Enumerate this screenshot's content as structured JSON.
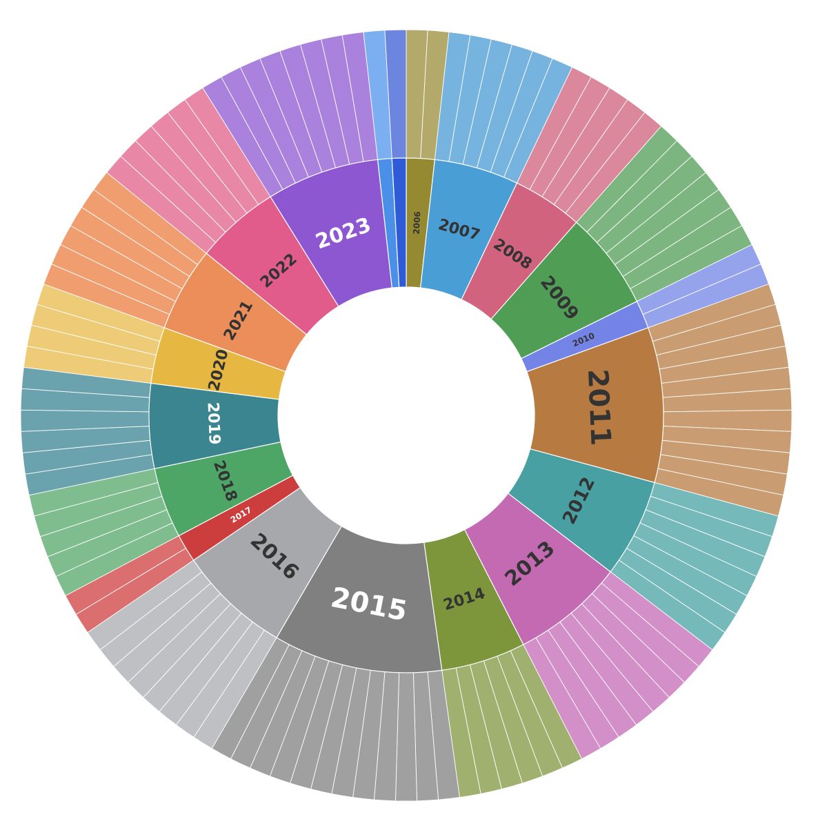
{
  "chart_data": {
    "type": "sunburst",
    "title": "",
    "start_angle_deg": 0,
    "years": [
      {
        "label": "2006",
        "items": 2,
        "inner_color": "#958a32",
        "outer_color": "#b2a96a",
        "text_color": "#333333"
      },
      {
        "label": "2007",
        "items": 6,
        "inner_color": "#4a9ed6",
        "outer_color": "#76b3de",
        "text_color": "#333333"
      },
      {
        "label": "2008",
        "items": 5,
        "inner_color": "#d1637f",
        "outer_color": "#dc889c",
        "text_color": "#333333"
      },
      {
        "label": "2009",
        "items": 7,
        "inner_color": "#509e56",
        "outer_color": "#7cb57f",
        "text_color": "#333333"
      },
      {
        "label": "2010",
        "items": 2,
        "inner_color": "#7384e6",
        "outer_color": "#95a2ec",
        "text_color": "#333333"
      },
      {
        "label": "2011",
        "items": 11,
        "inner_color": "#b77a41",
        "outer_color": "#c99c71",
        "text_color": "#333333"
      },
      {
        "label": "2012",
        "items": 7,
        "inner_color": "#49a0a2",
        "outer_color": "#76b9bb",
        "text_color": "#333333"
      },
      {
        "label": "2013",
        "items": 8,
        "inner_color": "#c46ab3",
        "outer_color": "#d38fc8",
        "text_color": "#333333"
      },
      {
        "label": "2014",
        "items": 6,
        "inner_color": "#7d963c",
        "outer_color": "#a0b06e",
        "text_color": "#333333"
      },
      {
        "label": "2015",
        "items": 12,
        "inner_color": "#808080",
        "outer_color": "#a0a0a0",
        "text_color": "#ffffff"
      },
      {
        "label": "2016",
        "items": 8,
        "inner_color": "#a6a8ab",
        "outer_color": "#bfc0c3",
        "text_color": "#333333"
      },
      {
        "label": "2017",
        "items": 2,
        "inner_color": "#cc3d3d",
        "outer_color": "#db6e6e",
        "text_color": "#ffffff"
      },
      {
        "label": "2018",
        "items": 5,
        "inner_color": "#4ea666",
        "outer_color": "#7fbd8e",
        "text_color": "#333333"
      },
      {
        "label": "2019",
        "items": 6,
        "inner_color": "#3b8591",
        "outer_color": "#6aa3ad",
        "text_color": "#ffffff"
      },
      {
        "label": "2020",
        "items": 4,
        "inner_color": "#e7b841",
        "outer_color": "#eecb76",
        "text_color": "#333333"
      },
      {
        "label": "2021",
        "items": 6,
        "inner_color": "#ec8e5a",
        "outer_color": "#f09e6f",
        "text_color": "#333333"
      },
      {
        "label": "2022",
        "items": 6,
        "inner_color": "#e15c8a",
        "outer_color": "#e887a6",
        "text_color": "#333333"
      },
      {
        "label": "2023",
        "items": 8,
        "inner_color": "#8d57d1",
        "outer_color": "#aa82dd",
        "text_color": "#ffffff"
      },
      {
        "label": "",
        "items": 1,
        "inner_color": "#4a90e8",
        "outer_color": "#7caff2",
        "text_color": "#ffffff"
      },
      {
        "label": "",
        "items": 1,
        "inner_color": "#2f5bd9",
        "outer_color": "#6c86e0",
        "text_color": "#ffffff"
      }
    ]
  }
}
